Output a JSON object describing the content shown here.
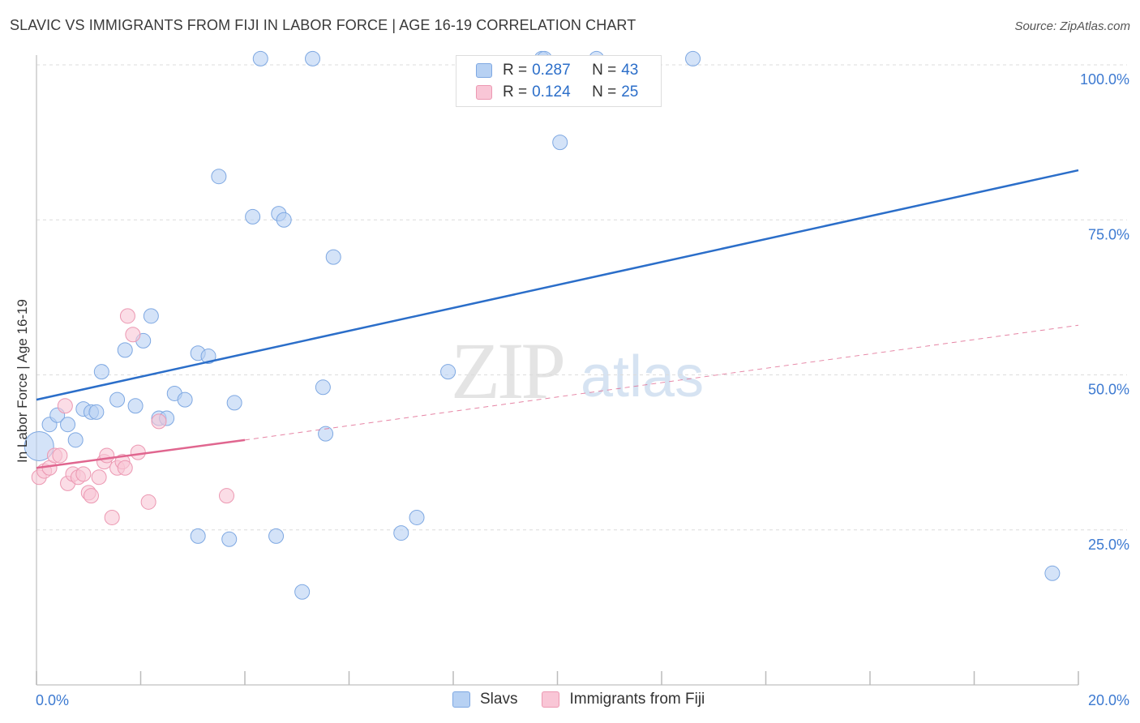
{
  "header": {
    "title": "SLAVIC VS IMMIGRANTS FROM FIJI IN LABOR FORCE | AGE 16-19 CORRELATION CHART",
    "source": "Source: ZipAtlas.com"
  },
  "watermark": {
    "zip": "ZIP",
    "atlas": "atlas"
  },
  "legend_top": {
    "rows": [
      {
        "r_label": "R =",
        "r_value": "0.287",
        "n_label": "N =",
        "n_value": "43"
      },
      {
        "r_label": "R =",
        "r_value": "0.124",
        "n_label": "N =",
        "n_value": "25"
      }
    ]
  },
  "legend_bottom": {
    "series1": "Slavs",
    "series2": "Immigrants from Fiji"
  },
  "colors": {
    "blue_fill": "#b7d1f3",
    "blue_stroke": "#7ea8e2",
    "blue_line": "#2b6ec9",
    "pink_fill": "#f9c6d6",
    "pink_stroke": "#ec98b2",
    "pink_line": "#e0668f",
    "tick_label": "#3d7ad1",
    "grid": "#dcdcdc"
  },
  "chart_data": {
    "type": "scatter",
    "title": "SLAVIC VS IMMIGRANTS FROM FIJI IN LABOR FORCE | AGE 16-19 CORRELATION CHART",
    "xlabel": "",
    "ylabel": "In Labor Force | Age 16-19",
    "xlim": [
      0,
      20
    ],
    "ylim": [
      0,
      102
    ],
    "x_tick_labels": [
      {
        "value": 0,
        "label": "0.0%"
      },
      {
        "value": 20,
        "label": "20.0%"
      }
    ],
    "x_minor_ticks": [
      0,
      2,
      4,
      6,
      8,
      10,
      12,
      14,
      16,
      18,
      20
    ],
    "y_ticks": [
      {
        "value": 100,
        "label": "100.0%"
      },
      {
        "value": 75,
        "label": "75.0%"
      },
      {
        "value": 50,
        "label": "50.0%"
      },
      {
        "value": 25,
        "label": "25.0%"
      }
    ],
    "series": [
      {
        "name": "Slavs",
        "color": "blue",
        "R": 0.287,
        "N": 43,
        "trend": {
          "x": [
            0,
            20
          ],
          "y": [
            46.0,
            83.0
          ],
          "dashed_extension": false
        },
        "points": [
          {
            "x": 0.05,
            "y": 38.5,
            "size": 18
          },
          {
            "x": 0.25,
            "y": 42.0
          },
          {
            "x": 0.4,
            "y": 43.5
          },
          {
            "x": 0.6,
            "y": 42.0
          },
          {
            "x": 0.75,
            "y": 39.5
          },
          {
            "x": 0.9,
            "y": 44.5
          },
          {
            "x": 1.05,
            "y": 44.0
          },
          {
            "x": 1.15,
            "y": 44.0
          },
          {
            "x": 1.25,
            "y": 50.5
          },
          {
            "x": 1.55,
            "y": 46.0
          },
          {
            "x": 1.7,
            "y": 54.0
          },
          {
            "x": 1.9,
            "y": 45.0
          },
          {
            "x": 2.05,
            "y": 55.5
          },
          {
            "x": 2.2,
            "y": 59.5
          },
          {
            "x": 2.35,
            "y": 43.0
          },
          {
            "x": 2.5,
            "y": 43.0
          },
          {
            "x": 2.65,
            "y": 47.0
          },
          {
            "x": 2.85,
            "y": 46.0
          },
          {
            "x": 3.1,
            "y": 24.0
          },
          {
            "x": 3.1,
            "y": 53.5
          },
          {
            "x": 3.3,
            "y": 53.0
          },
          {
            "x": 3.5,
            "y": 82.0
          },
          {
            "x": 3.7,
            "y": 23.5
          },
          {
            "x": 3.8,
            "y": 45.5
          },
          {
            "x": 4.15,
            "y": 75.5
          },
          {
            "x": 4.3,
            "y": 101.0
          },
          {
            "x": 4.6,
            "y": 24.0
          },
          {
            "x": 4.65,
            "y": 76.0
          },
          {
            "x": 4.75,
            "y": 75.0
          },
          {
            "x": 5.1,
            "y": 15.0
          },
          {
            "x": 5.3,
            "y": 101.0
          },
          {
            "x": 5.5,
            "y": 48.0
          },
          {
            "x": 5.55,
            "y": 40.5
          },
          {
            "x": 5.7,
            "y": 69.0
          },
          {
            "x": 7.0,
            "y": 24.5
          },
          {
            "x": 7.3,
            "y": 27.0
          },
          {
            "x": 7.9,
            "y": 50.5
          },
          {
            "x": 9.7,
            "y": 101.0
          },
          {
            "x": 9.75,
            "y": 101.0
          },
          {
            "x": 10.05,
            "y": 87.5
          },
          {
            "x": 10.75,
            "y": 101.0
          },
          {
            "x": 12.6,
            "y": 101.0
          },
          {
            "x": 19.5,
            "y": 18.0
          }
        ]
      },
      {
        "name": "Immigrants from Fiji",
        "color": "pink",
        "R": 0.124,
        "N": 25,
        "trend": {
          "x": [
            0,
            4.0
          ],
          "y": [
            35.0,
            39.5
          ],
          "dash_x": [
            4.0,
            20
          ],
          "dash_y": [
            39.5,
            58.0
          ]
        },
        "points": [
          {
            "x": 0.05,
            "y": 33.5
          },
          {
            "x": 0.15,
            "y": 34.5
          },
          {
            "x": 0.25,
            "y": 35.0
          },
          {
            "x": 0.35,
            "y": 37.0
          },
          {
            "x": 0.45,
            "y": 37.0
          },
          {
            "x": 0.55,
            "y": 45.0
          },
          {
            "x": 0.6,
            "y": 32.5
          },
          {
            "x": 0.7,
            "y": 34.0
          },
          {
            "x": 0.8,
            "y": 33.5
          },
          {
            "x": 0.9,
            "y": 34.0
          },
          {
            "x": 1.0,
            "y": 31.0
          },
          {
            "x": 1.05,
            "y": 30.5
          },
          {
            "x": 1.2,
            "y": 33.5
          },
          {
            "x": 1.3,
            "y": 36.0
          },
          {
            "x": 1.35,
            "y": 37.0
          },
          {
            "x": 1.45,
            "y": 27.0
          },
          {
            "x": 1.55,
            "y": 35.0
          },
          {
            "x": 1.65,
            "y": 36.0
          },
          {
            "x": 1.7,
            "y": 35.0
          },
          {
            "x": 1.75,
            "y": 59.5
          },
          {
            "x": 1.85,
            "y": 56.5
          },
          {
            "x": 1.95,
            "y": 37.5
          },
          {
            "x": 2.15,
            "y": 29.5
          },
          {
            "x": 2.35,
            "y": 42.5
          },
          {
            "x": 3.65,
            "y": 30.5
          }
        ]
      }
    ]
  }
}
